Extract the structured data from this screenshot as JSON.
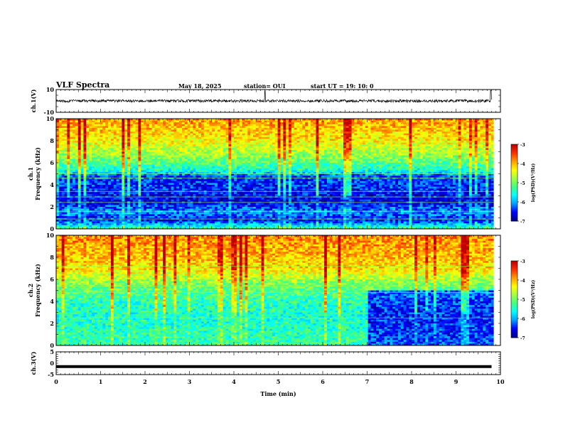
{
  "header": {
    "title": "VLF Spectra",
    "date": "May 18, 2025",
    "station": "station= OUI",
    "start_ut": "start  UT =   19: 10: 0"
  },
  "colors": {
    "background": "#ffffff",
    "axis": "#000000",
    "colormap": [
      "#00008f",
      "#0000ff",
      "#00a0ff",
      "#00ffff",
      "#40ff80",
      "#a0ff40",
      "#ffff00",
      "#ffa000",
      "#ff3000",
      "#c00000"
    ]
  },
  "chart_data": [
    {
      "type": "line",
      "panel": "ch1-waveform",
      "ylabel": "ch.1(V)",
      "ylim": [
        -10,
        10
      ],
      "yticks": [
        "10",
        "-10"
      ],
      "xlim": [
        0,
        10
      ],
      "description_level": 0,
      "noise_amplitude": 1.2,
      "spike_minutes": [
        4.7,
        9.78
      ]
    },
    {
      "type": "heatmap",
      "panel": "ch1-spectrogram",
      "ylabel_top": "ch.1",
      "ylabel": "Frequency  (kHz)",
      "ylim": [
        0,
        10
      ],
      "yticks": [
        "0",
        "2",
        "4",
        "6",
        "8",
        "10"
      ],
      "xlim": [
        0,
        10
      ],
      "data_end_minute": 9.85,
      "colorbar": {
        "label": "log(PSD)(V²/Hz)",
        "range": [
          -7,
          -3
        ],
        "ticks": [
          "-3",
          "-4",
          "-5",
          "-6",
          "-7"
        ]
      },
      "level_profile_log_psd": [
        {
          "khz": 0.0,
          "level": -5.2
        },
        {
          "khz": 0.8,
          "level": -6.6
        },
        {
          "khz": 1.5,
          "level": -6.1
        },
        {
          "khz": 2.5,
          "level": -6.7
        },
        {
          "khz": 3.5,
          "level": -6.5
        },
        {
          "khz": 4.8,
          "level": -6.4
        },
        {
          "khz": 5.2,
          "level": -5.6
        },
        {
          "khz": 6.5,
          "level": -4.9
        },
        {
          "khz": 8.0,
          "level": -4.3
        },
        {
          "khz": 10.0,
          "level": -3.9
        }
      ],
      "line_frequencies_khz": [
        0.9,
        1.6,
        2.4,
        2.9,
        3.4,
        4.6,
        5.0
      ]
    },
    {
      "type": "heatmap",
      "panel": "ch2-spectrogram",
      "ylabel_top": "ch.2",
      "ylabel": "Frequency  (kHz)",
      "ylim": [
        0,
        10
      ],
      "yticks": [
        "0",
        "2",
        "4",
        "6",
        "8",
        "10"
      ],
      "xlim": [
        0,
        10
      ],
      "data_end_minute": 9.85,
      "colorbar": {
        "label": "log(PSD)(V²/Hz)",
        "range": [
          -7,
          -3
        ],
        "ticks": [
          "-3",
          "-4",
          "-5",
          "-6",
          "-7"
        ]
      },
      "level_profile_log_psd": [
        {
          "khz": 0.0,
          "level": -5.3
        },
        {
          "khz": 1.0,
          "level": -5.4
        },
        {
          "khz": 2.5,
          "level": -5.5
        },
        {
          "khz": 4.0,
          "level": -5.4
        },
        {
          "khz": 5.5,
          "level": -5.0
        },
        {
          "khz": 7.0,
          "level": -4.2
        },
        {
          "khz": 10.0,
          "level": -3.8
        }
      ],
      "late_quiet_after_minute": 7.0,
      "line_frequencies_khz": [
        2.5,
        4.8,
        5.4,
        7.2
      ]
    },
    {
      "type": "line",
      "panel": "ch3-waveform",
      "ylabel": "ch.3(V)",
      "ylim": [
        -5,
        5
      ],
      "yticks": [
        "5",
        "0",
        "-5"
      ],
      "xlim": [
        0,
        10
      ],
      "constant_level": -1.5,
      "xlabel": "Time  (min)",
      "xticks": [
        "0",
        "1",
        "2",
        "3",
        "4",
        "5",
        "6",
        "7",
        "8",
        "9",
        "10"
      ]
    }
  ]
}
